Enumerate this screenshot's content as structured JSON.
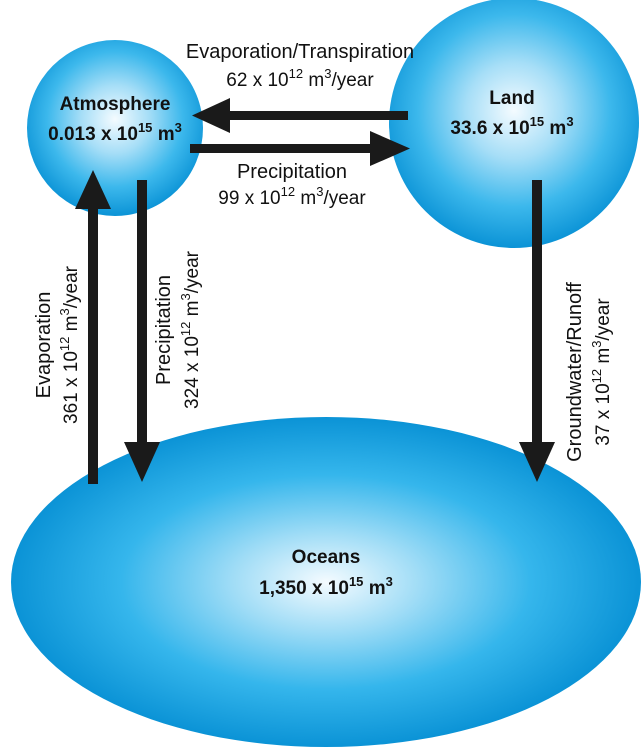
{
  "nodes": {
    "atmosphere": {
      "name": "Atmosphere",
      "volume_value": "0.013 x 10",
      "volume_exp": "15",
      "volume_unit": " m",
      "volume_unit_exp": "3"
    },
    "land": {
      "name": "Land",
      "volume_value": "33.6 x 10",
      "volume_exp": "15",
      "volume_unit": " m",
      "volume_unit_exp": "3"
    },
    "oceans": {
      "name": "Oceans",
      "volume_value": "1,350 x 10",
      "volume_exp": "15",
      "volume_unit": " m",
      "volume_unit_exp": "3"
    }
  },
  "flows": {
    "land_to_atmosphere": {
      "name": "Evaporation/Transpiration",
      "rate_value": "62 x 10",
      "rate_exp": "12",
      "rate_unit": " m",
      "rate_unit_exp": "3",
      "rate_suffix": "/year"
    },
    "atmosphere_to_land": {
      "name": "Precipitation",
      "rate_value": "99 x 10",
      "rate_exp": "12",
      "rate_unit": " m",
      "rate_unit_exp": "3",
      "rate_suffix": "/year"
    },
    "ocean_to_atmosphere": {
      "name": "Evaporation",
      "rate_value": "361 x 10",
      "rate_exp": "12",
      "rate_unit": " m",
      "rate_unit_exp": "3",
      "rate_suffix": "/year"
    },
    "atmosphere_to_ocean": {
      "name": "Precipitation",
      "rate_value": "324 x 10",
      "rate_exp": "12",
      "rate_unit": " m",
      "rate_unit_exp": "3",
      "rate_suffix": "/year"
    },
    "land_to_ocean": {
      "name": "Groundwater/Runoff",
      "rate_value": "37 x 10",
      "rate_exp": "12",
      "rate_unit": " m",
      "rate_unit_exp": "3",
      "rate_suffix": "/year"
    }
  },
  "colors": {
    "reservoir_light": "#f4fbff",
    "reservoir_mid": "#4cc0ee",
    "reservoir_edge": "#0b93d6",
    "arrow": "#1a1a1a"
  }
}
